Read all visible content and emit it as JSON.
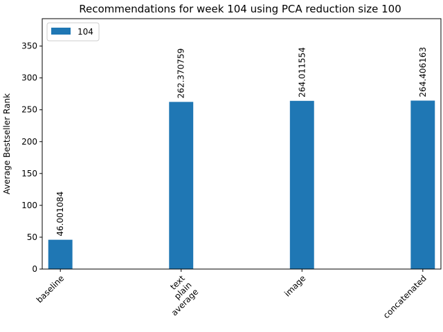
{
  "chart_data": {
    "type": "bar",
    "title": "Recommendations for week 104 using PCA reduction size 100",
    "xlabel": "",
    "ylabel": "Average Bestseller Rank",
    "categories": [
      [
        "baseline"
      ],
      [
        "text",
        "plain",
        "average"
      ],
      [
        "image"
      ],
      [
        "concatenated"
      ]
    ],
    "series": [
      {
        "name": "104",
        "color": "#1f77b4",
        "values": [
          46.001084,
          262.370759,
          264.011554,
          264.406163
        ],
        "data_labels": [
          "46.001084",
          "262.370759",
          "264.011554",
          "264.406163"
        ]
      }
    ],
    "yticks": [
      0,
      50,
      100,
      150,
      200,
      250,
      300,
      350
    ],
    "ylim": [
      0,
      393
    ],
    "grid": false,
    "legend_position": "top-left"
  }
}
